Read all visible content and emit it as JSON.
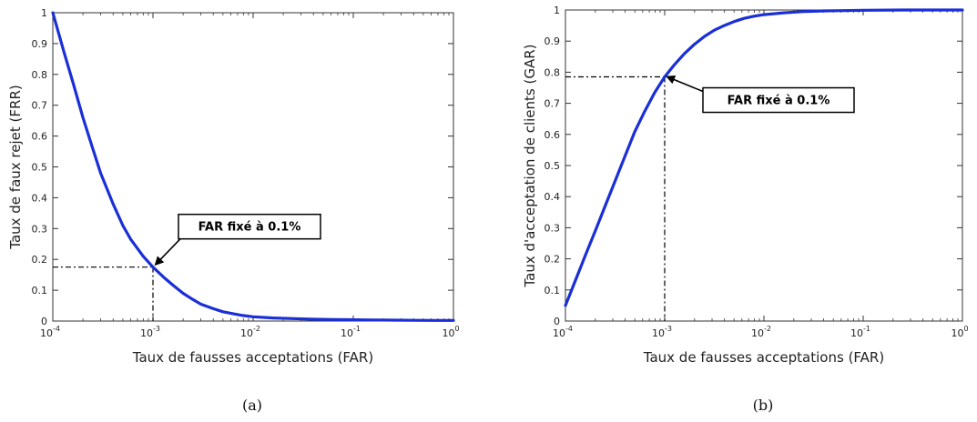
{
  "chart_data": [
    {
      "type": "line",
      "caption": "(a)",
      "xlabel": "Taux de fausses acceptations (FAR)",
      "ylabel": "Taux de faux rejet (FRR)",
      "xscale": "log",
      "xlim": [
        0.0001,
        1
      ],
      "ylim": [
        0,
        1
      ],
      "xticks": [
        0.0001,
        0.001,
        0.01,
        0.1,
        1
      ],
      "xtick_labels": [
        {
          "base": "10",
          "exp": "-4"
        },
        {
          "base": "10",
          "exp": "-3"
        },
        {
          "base": "10",
          "exp": "-2"
        },
        {
          "base": "10",
          "exp": "-1"
        },
        {
          "base": "10",
          "exp": "0"
        }
      ],
      "yticks": [
        "0",
        "0.1",
        "0.2",
        "0.3",
        "0.4",
        "0.5",
        "0.6",
        "0.7",
        "0.8",
        "0.9",
        "1"
      ],
      "grid": false,
      "line_color": "#1a2fd6",
      "series": [
        {
          "x": [
            0.0001,
            0.00013,
            0.00016,
            0.0002,
            0.00025,
            0.0003,
            0.0004,
            0.0005,
            0.0006,
            0.0008,
            0.001,
            0.0013,
            0.0016,
            0.002,
            0.0025,
            0.003,
            0.004,
            0.005,
            0.0063,
            0.0079,
            0.01,
            0.0158,
            0.0251,
            0.0398,
            0.0631,
            0.1,
            0.1585,
            0.2512,
            0.3981,
            0.631,
            1
          ],
          "y": [
            1.0,
            0.87,
            0.77,
            0.66,
            0.56,
            0.48,
            0.38,
            0.31,
            0.265,
            0.21,
            0.175,
            0.14,
            0.115,
            0.09,
            0.07,
            0.055,
            0.04,
            0.03,
            0.024,
            0.018,
            0.014,
            0.01,
            0.008,
            0.006,
            0.005,
            0.004,
            0.0035,
            0.003,
            0.0025,
            0.002,
            0.002
          ]
        }
      ],
      "annotation": {
        "text": "FAR fixé à 0.1%",
        "x": 0.001,
        "y": 0.175
      }
    },
    {
      "type": "line",
      "caption": "(b)",
      "xlabel": "Taux de fausses acceptations (FAR)",
      "ylabel": "Taux d'acceptation de clients (GAR)",
      "xscale": "log",
      "xlim": [
        0.0001,
        1
      ],
      "ylim": [
        0,
        1
      ],
      "xticks": [
        0.0001,
        0.001,
        0.01,
        0.1,
        1
      ],
      "xtick_labels": [
        {
          "base": "10",
          "exp": "-4"
        },
        {
          "base": "10",
          "exp": "-3"
        },
        {
          "base": "10",
          "exp": "-2"
        },
        {
          "base": "10",
          "exp": "-1"
        },
        {
          "base": "10",
          "exp": "0"
        }
      ],
      "yticks": [
        "0",
        "0.1",
        "0.2",
        "0.3",
        "0.4",
        "0.5",
        "0.6",
        "0.7",
        "0.8",
        "0.9",
        "1"
      ],
      "grid": false,
      "line_color": "#1a2fd6",
      "series": [
        {
          "x": [
            0.0001,
            0.000126,
            0.000158,
            0.0002,
            0.000251,
            0.000316,
            0.000398,
            0.000501,
            0.000631,
            0.000794,
            0.001,
            0.00126,
            0.00158,
            0.002,
            0.00251,
            0.00316,
            0.00398,
            0.00501,
            0.00631,
            0.00794,
            0.01,
            0.0158,
            0.0251,
            0.0398,
            0.0631,
            0.1,
            0.2512,
            1
          ],
          "y": [
            0.05,
            0.13,
            0.21,
            0.29,
            0.37,
            0.45,
            0.53,
            0.61,
            0.675,
            0.735,
            0.785,
            0.825,
            0.86,
            0.89,
            0.915,
            0.935,
            0.95,
            0.963,
            0.973,
            0.98,
            0.985,
            0.991,
            0.995,
            0.997,
            0.998,
            0.999,
            1.0,
            1.0
          ]
        }
      ],
      "annotation": {
        "text": "FAR fixé à 0.1%",
        "x": 0.001,
        "y": 0.785
      }
    }
  ]
}
